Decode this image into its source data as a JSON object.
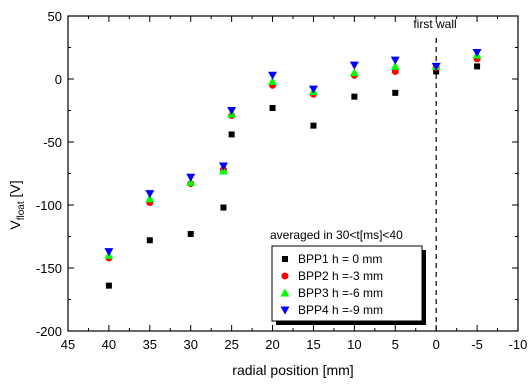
{
  "chart_data": {
    "type": "scatter",
    "xlabel": "radial position [mm]",
    "ylabel_main": "V",
    "ylabel_sub": "float",
    "ylabel_unit": " [V]",
    "xlim": [
      45,
      -10
    ],
    "ylim": [
      -200,
      50
    ],
    "x_ticks": [
      45,
      40,
      35,
      30,
      25,
      20,
      15,
      10,
      5,
      0,
      -5,
      -10
    ],
    "y_ticks": [
      -200,
      -150,
      -100,
      -50,
      0,
      50
    ],
    "x_tick_labels": [
      "45",
      "40",
      "35",
      "30",
      "25",
      "20",
      "15",
      "10",
      "5",
      "0",
      "-5",
      "-10"
    ],
    "y_tick_labels": [
      "-200",
      "-150",
      "-100",
      "-50",
      "0",
      "50"
    ],
    "grid": false,
    "reference_line": {
      "x": 0,
      "style": "dashed",
      "label": "first wall"
    },
    "legend_title": "averaged in 30<t[ms]<40",
    "legend_placement": "lower-right",
    "series": [
      {
        "name": "BPP1 h = 0 mm",
        "marker": "square",
        "color": "#000000",
        "x": [
          40,
          35,
          30,
          26,
          25,
          20,
          15,
          10,
          5,
          0,
          -5
        ],
        "y": [
          -164,
          -128,
          -123,
          -102,
          -44,
          -23,
          -37,
          -14,
          -11,
          6,
          10
        ]
      },
      {
        "name": "BPP2 h =-3 mm",
        "marker": "circle",
        "color": "#ff0000",
        "x": [
          40,
          35,
          30,
          26,
          25,
          20,
          15,
          10,
          5,
          0,
          -5
        ],
        "y": [
          -142,
          -98,
          -83,
          -72,
          -29,
          -5,
          -12,
          3,
          6,
          9,
          16
        ]
      },
      {
        "name": "BPP3 h =-6 mm",
        "marker": "triangle-up",
        "color": "#00ff00",
        "x": [
          40,
          35,
          30,
          26,
          25,
          20,
          15,
          10,
          5,
          0,
          -5
        ],
        "y": [
          -140,
          -95,
          -82,
          -73,
          -28,
          -2,
          -10,
          5,
          10,
          10,
          19
        ]
      },
      {
        "name": "BPP4 h =-9 mm",
        "marker": "triangle-down",
        "color": "#0000ff",
        "x": [
          40,
          35,
          30,
          26,
          25,
          20,
          15,
          10,
          5,
          0,
          -5
        ],
        "y": [
          -137,
          -91,
          -78,
          -69,
          -25,
          3,
          -8,
          11,
          15,
          10,
          21
        ]
      }
    ]
  }
}
